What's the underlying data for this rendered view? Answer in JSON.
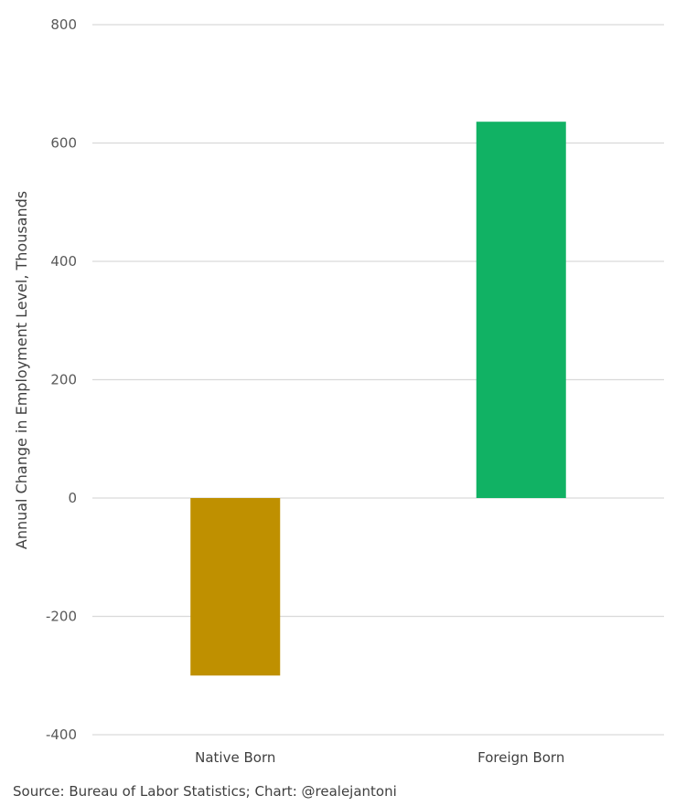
{
  "chart_data": {
    "type": "bar",
    "categories": [
      "Native Born",
      "Foreign Born"
    ],
    "values": [
      -300,
      636
    ],
    "bar_colors": [
      "#bf9000",
      "#11b264"
    ],
    "title": "",
    "xlabel": "",
    "ylabel": "Annual Change in Employment Level, Thousands",
    "ylim": [
      -400,
      800
    ],
    "yticks": [
      800,
      600,
      400,
      200,
      0,
      -200,
      -400
    ],
    "grid": true,
    "gridline_color": "#d9d9d9"
  },
  "footer": {
    "source": "Source: Bureau of Labor Statistics; Chart: @realejantoni"
  }
}
